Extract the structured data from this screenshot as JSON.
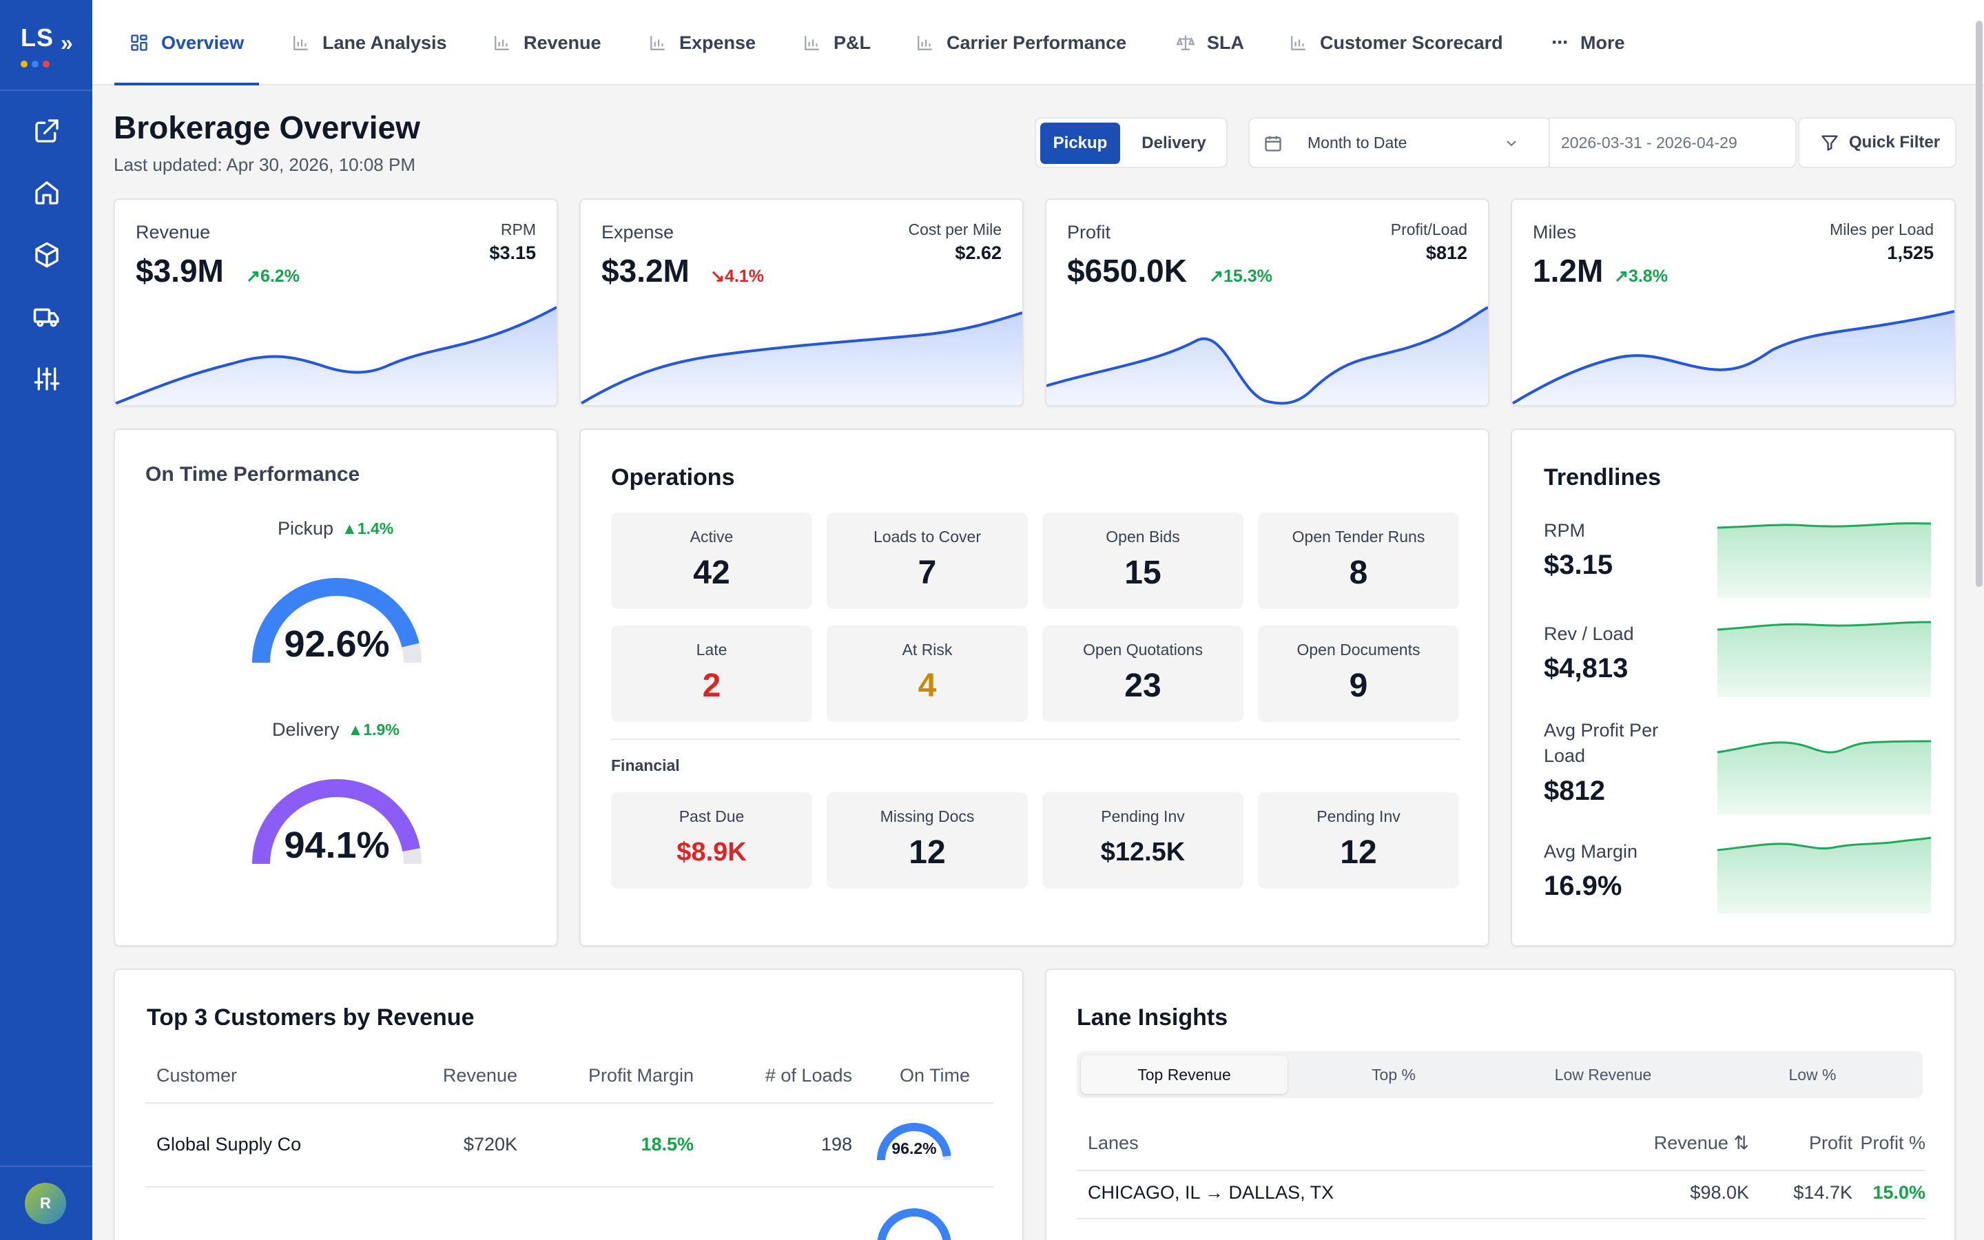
{
  "brand": {
    "initials": "LS",
    "user_initial": "R",
    "accent": "#1e4fb5",
    "sidebar_color": "#1c4fb5"
  },
  "sidebar": {
    "icons": [
      "external-link-icon",
      "home-icon",
      "package-icon",
      "truck-icon",
      "sliders-icon"
    ]
  },
  "tabs": [
    {
      "label": "Overview",
      "icon": "grid-icon",
      "active": true
    },
    {
      "label": "Lane Analysis",
      "icon": "bar-chart-icon"
    },
    {
      "label": "Revenue",
      "icon": "bar-chart-icon"
    },
    {
      "label": "Expense",
      "icon": "bar-chart-icon"
    },
    {
      "label": "P&L",
      "icon": "bar-chart-icon"
    },
    {
      "label": "Carrier Performance",
      "icon": "bar-chart-icon"
    },
    {
      "label": "SLA",
      "icon": "scale-icon"
    },
    {
      "label": "Customer Scorecard",
      "icon": "bar-chart-icon"
    },
    {
      "label": "More",
      "icon": "more-icon"
    }
  ],
  "header": {
    "title": "Brokerage Overview",
    "last_updated": "Last updated: Apr 30, 2026, 10:08 PM",
    "toggle": {
      "pickup": "Pickup",
      "delivery": "Delivery",
      "selected": "Pickup"
    },
    "date_preset": "Month to Date",
    "date_range": "2026-03-31 - 2026-04-29",
    "quick_filter": "Quick Filter"
  },
  "kpis": [
    {
      "title": "Revenue",
      "value": "$3.9M",
      "delta": "6.2%",
      "trend": "up",
      "sub_label": "RPM",
      "sub_value": "$3.15"
    },
    {
      "title": "Expense",
      "value": "$3.2M",
      "delta": "4.1%",
      "trend": "down",
      "sub_label": "Cost per Mile",
      "sub_value": "$2.62"
    },
    {
      "title": "Profit",
      "value": "$650.0K",
      "delta": "15.3%",
      "trend": "up",
      "sub_label": "Profit/Load",
      "sub_value": "$812"
    },
    {
      "title": "Miles",
      "value": "1.2M",
      "delta": "3.8%",
      "trend": "up",
      "sub_label": "Miles per Load",
      "sub_value": "1,525"
    }
  ],
  "on_time": {
    "title": "On Time Performance",
    "pickup": {
      "label": "Pickup",
      "delta": "1.4%",
      "value": "92.6%",
      "pct": 92.6,
      "color": "#3b82f6"
    },
    "delivery": {
      "label": "Delivery",
      "delta": "1.9%",
      "value": "94.1%",
      "pct": 94.1,
      "color": "#8b5cf6"
    }
  },
  "operations": {
    "title": "Operations",
    "tiles": [
      {
        "label": "Active",
        "value": "42"
      },
      {
        "label": "Loads to Cover",
        "value": "7"
      },
      {
        "label": "Open Bids",
        "value": "15"
      },
      {
        "label": "Open Tender Runs",
        "value": "8"
      },
      {
        "label": "Late",
        "value": "2",
        "color": "#dc2626"
      },
      {
        "label": "At Risk",
        "value": "4",
        "color": "#ca8a04"
      },
      {
        "label": "Open Quotations",
        "value": "23"
      },
      {
        "label": "Open Documents",
        "value": "9"
      }
    ],
    "financial_label": "Financial",
    "financial": [
      {
        "label": "Past Due",
        "value": "$8.9K",
        "color": "#dc2626"
      },
      {
        "label": "Missing Docs",
        "value": "12"
      },
      {
        "label": "Pending Inv",
        "value": "$12.5K"
      },
      {
        "label": "Pending Inv",
        "value": "12"
      }
    ]
  },
  "trendlines": {
    "title": "Trendlines",
    "items": [
      {
        "label": "RPM",
        "value": "$3.15"
      },
      {
        "label": "Rev / Load",
        "value": "$4,813"
      },
      {
        "label": "Avg Profit Per Load",
        "value": "$812"
      },
      {
        "label": "Avg Margin",
        "value": "16.9%"
      }
    ]
  },
  "top_customers": {
    "title": "Top 3 Customers by Revenue",
    "columns": [
      "Customer",
      "Revenue",
      "Profit Margin",
      "# of Loads",
      "On Time"
    ],
    "rows": [
      {
        "customer": "Global Supply Co",
        "revenue": "$720K",
        "margin": "18.5%",
        "loads": "198",
        "on_time": "96.2%",
        "on_time_pct": 96.2
      }
    ]
  },
  "lane_insights": {
    "title": "Lane Insights",
    "tabs": [
      "Top Revenue",
      "Top %",
      "Low Revenue",
      "Low %"
    ],
    "active_tab": "Top Revenue",
    "columns": [
      "Lanes",
      "Revenue ⇅",
      "Profit",
      "Profit %"
    ],
    "rows": [
      {
        "lane": "CHICAGO, IL → DALLAS, TX",
        "revenue": "$98.0K",
        "profit": "$14.7K",
        "profit_pct": "15.0%"
      }
    ]
  }
}
